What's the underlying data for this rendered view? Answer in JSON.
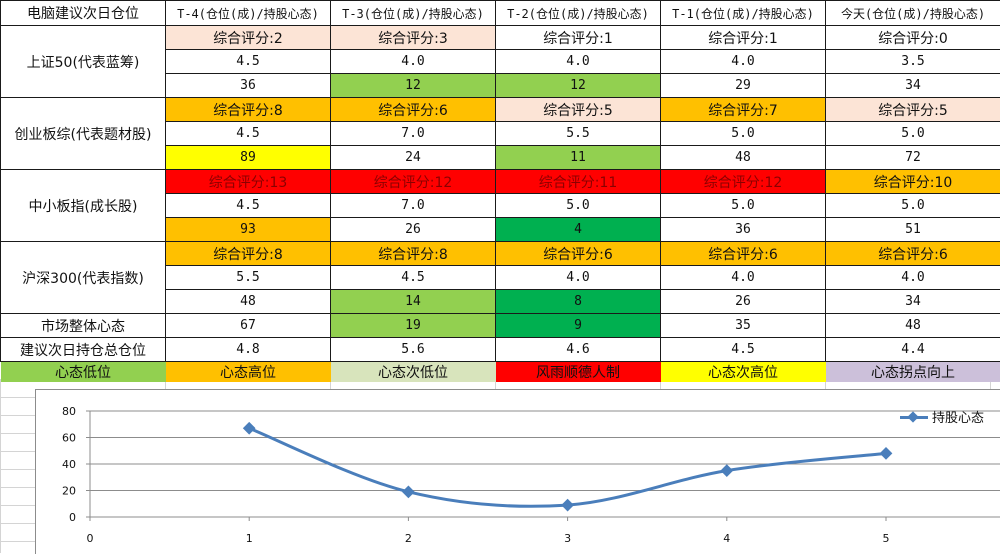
{
  "table": {
    "header": {
      "corner": "电脑建议次日仓位",
      "columns": [
        "T-4(仓位(成)/持股心态)",
        "T-3(仓位(成)/持股心态)",
        "T-2(仓位(成)/持股心态)",
        "T-1(仓位(成)/持股心态)",
        "今天(仓位(成)/持股心态)"
      ]
    },
    "groups": [
      {
        "label": "上证50(代表蓝筹)",
        "scores": [
          "综合评分:2",
          "综合评分:3",
          "综合评分:1",
          "综合评分:1",
          "综合评分:0"
        ],
        "score_colors": [
          "#fce4d6",
          "#fce4d6",
          "#ffffff",
          "#ffffff",
          "#ffffff"
        ],
        "positions": [
          "4.5",
          "4.0",
          "4.0",
          "4.0",
          "3.5"
        ],
        "mentality": [
          "36",
          "12",
          "12",
          "29",
          "34"
        ],
        "mentality_colors": [
          "#ffffff",
          "#92d050",
          "#92d050",
          "#ffffff",
          "#ffffff"
        ]
      },
      {
        "label": "创业板综(代表题材股)",
        "scores": [
          "综合评分:8",
          "综合评分:6",
          "综合评分:5",
          "综合评分:7",
          "综合评分:5"
        ],
        "score_colors": [
          "#ffc000",
          "#ffc000",
          "#fce4d6",
          "#ffc000",
          "#fce4d6"
        ],
        "positions": [
          "4.5",
          "7.0",
          "5.5",
          "5.0",
          "5.0"
        ],
        "mentality": [
          "89",
          "24",
          "11",
          "48",
          "72"
        ],
        "mentality_colors": [
          "#ffff00",
          "#ffffff",
          "#92d050",
          "#ffffff",
          "#ffffff"
        ]
      },
      {
        "label": "中小板指(成长股)",
        "scores": [
          "综合评分:13",
          "综合评分:12",
          "综合评分:11",
          "综合评分:12",
          "综合评分:10"
        ],
        "score_colors": [
          "#ff0000",
          "#ff0000",
          "#ff0000",
          "#ff0000",
          "#ffc000"
        ],
        "positions": [
          "4.5",
          "7.0",
          "5.0",
          "5.0",
          "5.0"
        ],
        "mentality": [
          "93",
          "26",
          "4",
          "36",
          "51"
        ],
        "mentality_colors": [
          "#ffc000",
          "#ffffff",
          "#00b050",
          "#ffffff",
          "#ffffff"
        ]
      },
      {
        "label": "沪深300(代表指数)",
        "scores": [
          "综合评分:8",
          "综合评分:8",
          "综合评分:6",
          "综合评分:6",
          "综合评分:6"
        ],
        "score_colors": [
          "#ffc000",
          "#ffc000",
          "#ffc000",
          "#ffc000",
          "#ffc000"
        ],
        "positions": [
          "5.5",
          "4.5",
          "4.0",
          "4.0",
          "4.0"
        ],
        "mentality": [
          "48",
          "14",
          "8",
          "26",
          "34"
        ],
        "mentality_colors": [
          "#ffffff",
          "#92d050",
          "#00b050",
          "#ffffff",
          "#ffffff"
        ]
      }
    ],
    "market_mentality": {
      "label": "市场整体心态",
      "values": [
        "67",
        "19",
        "9",
        "35",
        "48"
      ],
      "colors": [
        "#ffffff",
        "#92d050",
        "#00b050",
        "#ffffff",
        "#ffffff"
      ]
    },
    "total_position": {
      "label": "建议次日持仓总仓位",
      "values": [
        "4.8",
        "5.6",
        "4.6",
        "4.5",
        "4.4"
      ]
    },
    "legend": [
      {
        "label": "心态低位",
        "color": "#92d050"
      },
      {
        "label": "心态高位",
        "color": "#ffc000"
      },
      {
        "label": "心态次低位",
        "color": "#d8e4bc"
      },
      {
        "label": "风雨顺德人制",
        "color": "#ff0000"
      },
      {
        "label": "心态次高位",
        "color": "#ffff00"
      },
      {
        "label": "心态拐点向上",
        "color": "#ccc0da"
      }
    ]
  },
  "chart_data": {
    "type": "line",
    "title": "",
    "xlabel": "",
    "ylabel": "",
    "x": [
      1,
      2,
      3,
      4,
      5
    ],
    "series": [
      {
        "name": "持股心态",
        "values": [
          67,
          19,
          9,
          35,
          48
        ],
        "color": "#4a7ebb",
        "marker": "diamond",
        "smooth": true
      }
    ],
    "x_ticks": [
      "0",
      "1",
      "2",
      "3",
      "4",
      "5"
    ],
    "y_ticks": [
      "0",
      "20",
      "40",
      "60",
      "80"
    ],
    "xlim": [
      0,
      5.7
    ],
    "ylim": [
      0,
      80
    ],
    "grid": "horizontal",
    "legend_position": "top-right"
  }
}
